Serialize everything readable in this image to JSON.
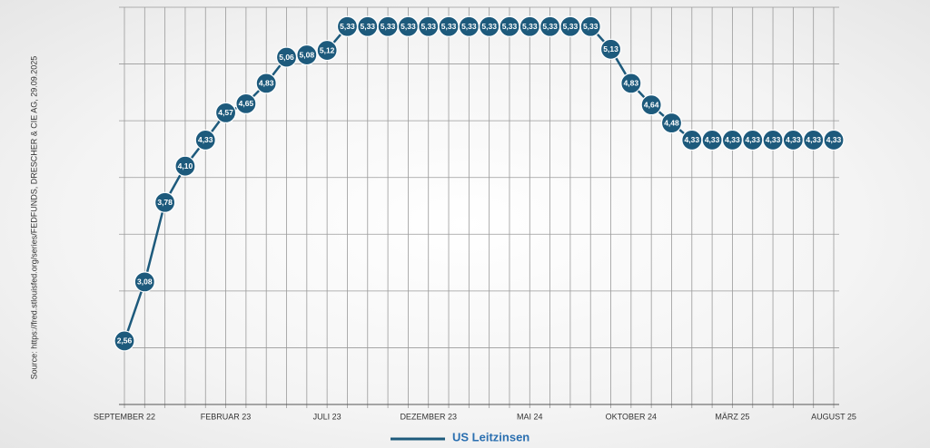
{
  "chart_data": {
    "type": "line",
    "source": "Source: https://fred.stlouisfed.org/series/FEDFUNDS, DRESCHER & CIE AG, 29.09.2025",
    "categories": [
      "SEPTEMBER 22",
      null,
      null,
      null,
      null,
      "FEBRUAR 23",
      null,
      null,
      null,
      null,
      "JULI 23",
      null,
      null,
      null,
      null,
      "DEZEMBER 23",
      null,
      null,
      null,
      null,
      "MAI 24",
      null,
      null,
      null,
      null,
      "OKTOBER 24",
      null,
      null,
      null,
      null,
      "MÄRZ 25",
      null,
      null,
      null,
      null,
      "AUGUST 25"
    ],
    "series": [
      {
        "name": "US Leitzinsen",
        "color": "#1d5a7c",
        "values": [
          2.56,
          3.08,
          3.78,
          4.1,
          4.33,
          4.57,
          4.65,
          4.83,
          5.06,
          5.08,
          5.12,
          5.33,
          5.33,
          5.33,
          5.33,
          5.33,
          5.33,
          5.33,
          5.33,
          5.33,
          5.33,
          5.33,
          5.33,
          5.33,
          5.13,
          4.83,
          4.64,
          4.48,
          4.33,
          4.33,
          4.33,
          4.33,
          4.33,
          4.33,
          4.33,
          4.33
        ],
        "value_labels": [
          "2,56",
          "3,08",
          "3,78",
          "4,10",
          "4,33",
          "4,57",
          "4,65",
          "4,83",
          "5,06",
          "5,08",
          "5,12",
          "5,33",
          "5,33",
          "5,33",
          "5,33",
          "5,33",
          "5,33",
          "5,33",
          "5,33",
          "5,33",
          "5,33",
          "5,33",
          "5,33",
          "5,33",
          "5,13",
          "4,83",
          "4,64",
          "4,48",
          "4,33",
          "4,33",
          "4,33",
          "4,33",
          "4,33",
          "4,33",
          "4,33",
          "4,33"
        ]
      }
    ],
    "ylim": [
      2,
      5.5
    ],
    "yticks": [
      2,
      2.5,
      3,
      3.5,
      4,
      4.5,
      5,
      5.5
    ],
    "grid": true
  }
}
